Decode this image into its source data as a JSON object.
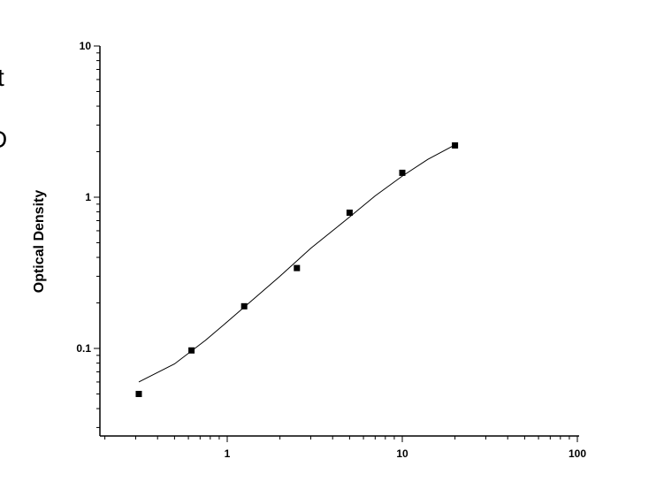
{
  "chart_data": {
    "type": "scatter",
    "title": "",
    "xlabel": "",
    "ylabel": "Optical Density",
    "x_scale": "log",
    "y_scale": "log",
    "xlim": [
      0.2,
      100
    ],
    "ylim": [
      0.027,
      10
    ],
    "x_ticks": [
      {
        "value": 1,
        "label": "1"
      },
      {
        "value": 10,
        "label": "10"
      },
      {
        "value": 100,
        "label": "100"
      }
    ],
    "y_ticks": [
      {
        "value": 0.1,
        "label": "0.1"
      },
      {
        "value": 1,
        "label": "1"
      },
      {
        "value": 10,
        "label": "10"
      }
    ],
    "grid": false,
    "legend": "none",
    "series": [
      {
        "marker": "square",
        "color": "#000000",
        "x": [
          0.3125,
          0.625,
          1.25,
          2.5,
          5,
          10,
          20
        ],
        "y": [
          0.05,
          0.097,
          0.19,
          0.34,
          0.79,
          1.45,
          2.2
        ]
      }
    ],
    "fit_curve": {
      "color": "#000000",
      "x": [
        0.3125,
        0.5,
        0.75,
        1,
        1.5,
        2,
        3,
        4,
        5,
        7,
        10,
        14,
        20
      ],
      "y": [
        0.06,
        0.079,
        0.113,
        0.15,
        0.225,
        0.3,
        0.46,
        0.6,
        0.74,
        1.02,
        1.38,
        1.78,
        2.22
      ]
    },
    "edge_text": [
      "t",
      "D"
    ]
  }
}
